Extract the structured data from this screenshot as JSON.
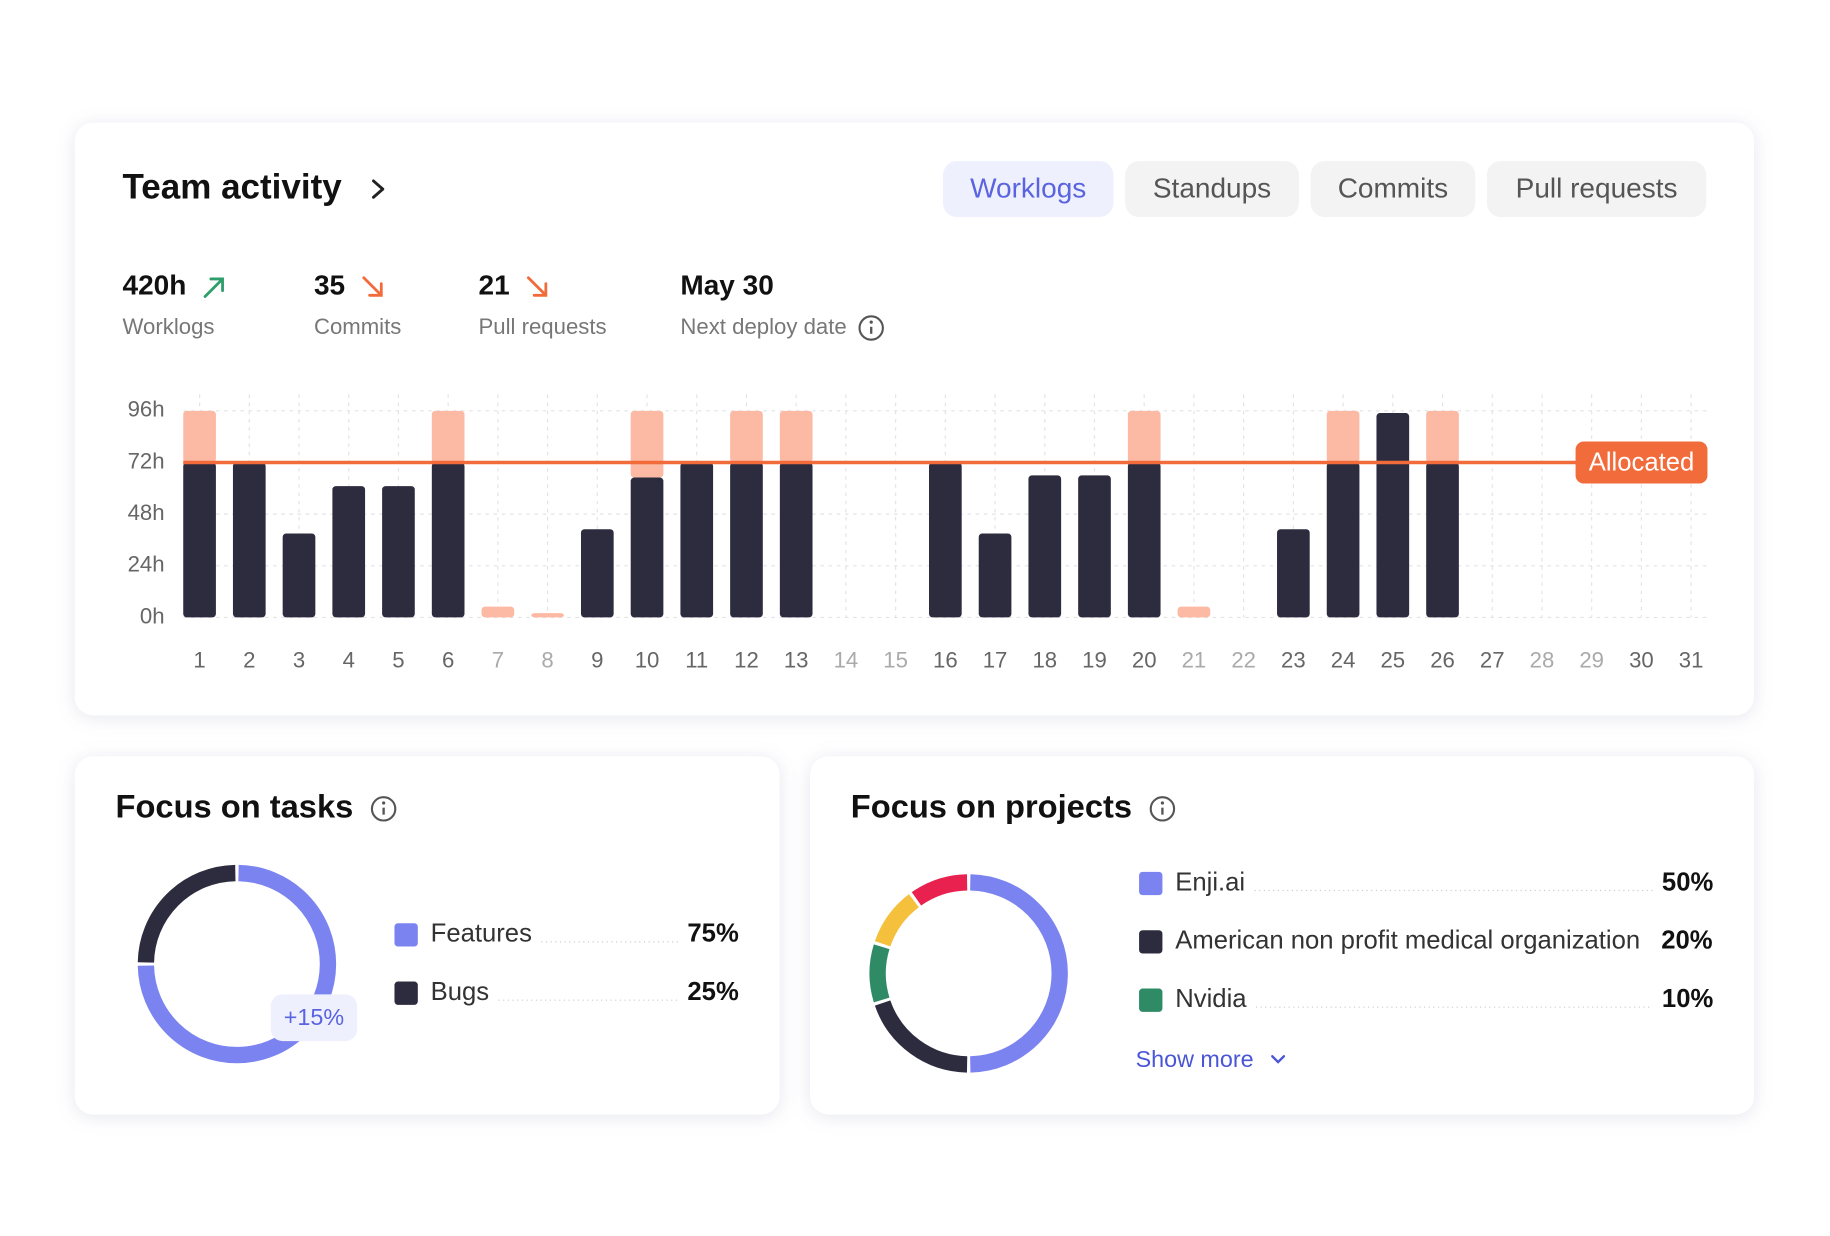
{
  "header": {
    "title": "Team activity"
  },
  "tabs": {
    "items": [
      "Worklogs",
      "Standups",
      "Commits",
      "Pull requests"
    ],
    "active": 0
  },
  "stats": [
    {
      "value": "420h",
      "label": "Worklogs",
      "trend": "up"
    },
    {
      "value": "35",
      "label": "Commits",
      "trend": "down"
    },
    {
      "value": "21",
      "label": "Pull requests",
      "trend": "down"
    },
    {
      "value": "May 30",
      "label": "Next deploy date"
    }
  ],
  "chart_data": [
    {
      "type": "bar",
      "stacked": true,
      "grid": true,
      "categories": [
        "1",
        "2",
        "3",
        "4",
        "5",
        "6",
        "7",
        "8",
        "9",
        "10",
        "11",
        "12",
        "13",
        "14",
        "15",
        "16",
        "17",
        "18",
        "19",
        "20",
        "21",
        "22",
        "23",
        "24",
        "25",
        "26",
        "27",
        "28",
        "29",
        "30",
        "31"
      ],
      "label_colors": [
        "#666",
        "#666",
        "#666",
        "#666",
        "#666",
        "#666",
        "#aaa",
        "#aaa",
        "#666",
        "#666",
        "#666",
        "#666",
        "#666",
        "#aaa",
        "#aaa",
        "#666",
        "#666",
        "#666",
        "#666",
        "#666",
        "#aaa",
        "#aaa",
        "#666",
        "#666",
        "#666",
        "#666",
        "#666",
        "#aaa",
        "#aaa",
        "#666",
        "#666"
      ],
      "series": [
        {
          "color": "#2d2c3e",
          "values": [
            72,
            72,
            39,
            61,
            61,
            72,
            0,
            0,
            41,
            65,
            72,
            72,
            72,
            0,
            0,
            72,
            39,
            66,
            66,
            72,
            0,
            0,
            41,
            72,
            95,
            72,
            0,
            0,
            0,
            0,
            0
          ]
        },
        {
          "color": "#fcb9a3",
          "values": [
            24,
            0,
            0,
            0,
            0,
            24,
            5,
            2,
            0,
            31,
            0,
            24,
            24,
            0,
            0,
            0,
            0,
            0,
            0,
            24,
            5,
            0,
            0,
            24,
            0,
            24,
            0,
            0,
            0,
            0,
            0
          ]
        }
      ],
      "ylim": [
        0,
        96
      ],
      "yticks": [
        {
          "value": 0,
          "label": "0h"
        },
        {
          "value": 24,
          "label": "24h"
        },
        {
          "value": 48,
          "label": "48h"
        },
        {
          "value": 72,
          "label": "72h"
        },
        {
          "value": 96,
          "label": "96h"
        }
      ],
      "reference": {
        "label": "Allocated",
        "value": 72,
        "color": "#f26b3a"
      }
    },
    {
      "type": "donut",
      "title": "Focus on tasks",
      "categories": [
        "Features",
        "Bugs"
      ],
      "values": [
        75,
        25
      ],
      "value_labels": [
        "75%",
        "25%"
      ],
      "colors": [
        "#7b83f0",
        "#2d2c3e"
      ],
      "badge": "+15%"
    },
    {
      "type": "donut",
      "title": "Focus on projects",
      "categories": [
        "Enji.ai",
        "American non profit medical organization",
        "Nvidia",
        null,
        null
      ],
      "values": [
        50,
        20,
        10,
        10,
        10
      ],
      "value_labels": [
        "50%",
        "20%",
        "10%",
        null,
        null
      ],
      "colors": [
        "#7b83f0",
        "#2d2c3e",
        "#2e8b66",
        "#f5c03b",
        "#e8214f"
      ],
      "link": "Show more"
    }
  ]
}
